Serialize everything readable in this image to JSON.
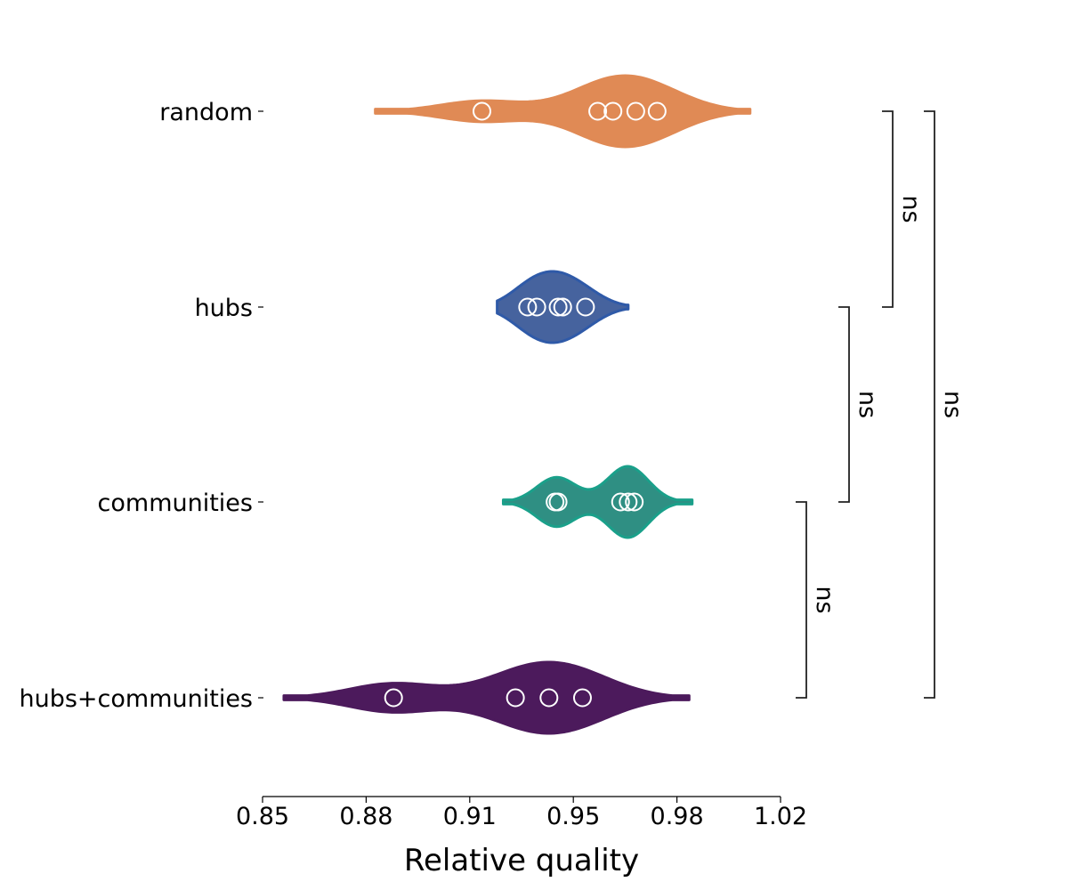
{
  "chart_data": {
    "type": "violin",
    "orientation": "horizontal",
    "xlabel": "Relative quality",
    "ylabel": "",
    "xlim": [
      0.85,
      1.02
    ],
    "x_ticks": [
      "0.85",
      "0.88",
      "0.91",
      "0.95",
      "0.98",
      "1.02"
    ],
    "grid": false,
    "categories": [
      "random",
      "hubs",
      "communities",
      "hubs+communities"
    ],
    "series": [
      {
        "category": "random",
        "color": "#e08a55",
        "edge_color": "#e08a55",
        "points": [
          0.922,
          0.96,
          0.965,
          0.9725,
          0.9795
        ],
        "range": [
          0.887,
          1.01
        ],
        "density_peak": 0.97
      },
      {
        "category": "hubs",
        "color": "#46639e",
        "edge_color": "#2f5aa8",
        "points": [
          0.937,
          0.94,
          0.947,
          0.9485,
          0.956
        ],
        "range": [
          0.927,
          0.97
        ],
        "density_peak": 0.946
      },
      {
        "category": "communities",
        "color": "#2f8f83",
        "edge_color": "#1aa08a",
        "points": [
          0.946,
          0.947,
          0.9675,
          0.97,
          0.972
        ],
        "range": [
          0.929,
          0.991
        ],
        "density_peak": 0.97
      },
      {
        "category": "hubs+communities",
        "color": "#4c1a5c",
        "edge_color": "#4c1a5c",
        "points": [
          0.893,
          0.933,
          0.944,
          0.955
        ],
        "range": [
          0.857,
          0.99
        ],
        "density_peak": 0.944
      }
    ],
    "significance_brackets": [
      {
        "from": "random",
        "to": "hubs",
        "label": "ns"
      },
      {
        "from": "hubs",
        "to": "communities",
        "label": "ns"
      },
      {
        "from": "random",
        "to": "hubs+communities",
        "label": "ns"
      },
      {
        "from": "communities",
        "to": "hubs+communities",
        "label": "ns"
      }
    ]
  }
}
